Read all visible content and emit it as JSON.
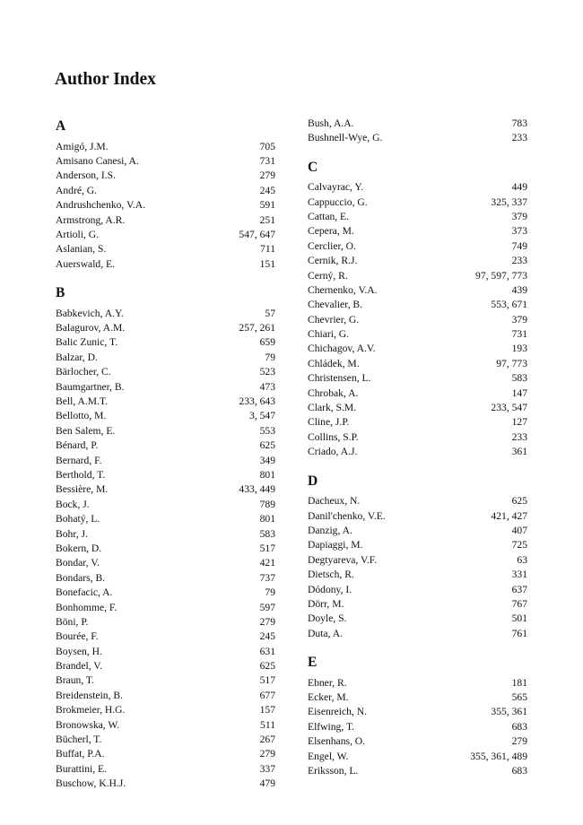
{
  "title": "Author Index",
  "columns": [
    [
      {
        "letter": "A",
        "entries": [
          [
            "Amigó, J.M.",
            "705"
          ],
          [
            "Amisano Canesi, A.",
            "731"
          ],
          [
            "Anderson, I.S.",
            "279"
          ],
          [
            "André, G.",
            "245"
          ],
          [
            "Andrushchenko, V.A.",
            "591"
          ],
          [
            "Armstrong, A.R.",
            "251"
          ],
          [
            "Artioli, G.",
            "547, 647"
          ],
          [
            "Aslanian, S.",
            "711"
          ],
          [
            "Auerswald, E.",
            "151"
          ]
        ]
      },
      {
        "letter": "B",
        "entries": [
          [
            "Babkevich, A.Y.",
            "57"
          ],
          [
            "Balagurov, A.M.",
            "257, 261"
          ],
          [
            "Balic Zunic, T.",
            "659"
          ],
          [
            "Balzar, D.",
            "79"
          ],
          [
            "Bärlocher, C.",
            "523"
          ],
          [
            "Baumgartner, B.",
            "473"
          ],
          [
            "Bell, A.M.T.",
            "233, 643"
          ],
          [
            "Bellotto, M.",
            "3, 547"
          ],
          [
            "Ben Salem, E.",
            "553"
          ],
          [
            "Bénard, P.",
            "625"
          ],
          [
            "Bernard, F.",
            "349"
          ],
          [
            "Berthold, T.",
            "801"
          ],
          [
            "Bessière, M.",
            "433, 449"
          ],
          [
            "Bock, J.",
            "789"
          ],
          [
            "Bohatý, L.",
            "801"
          ],
          [
            "Bohr, J.",
            "583"
          ],
          [
            "Bokern, D.",
            "517"
          ],
          [
            "Bondar, V.",
            "421"
          ],
          [
            "Bondars, B.",
            "737"
          ],
          [
            "Bonefacic, A.",
            "79"
          ],
          [
            "Bonhomme, F.",
            "597"
          ],
          [
            "Böni, P.",
            "279"
          ],
          [
            "Bourée, F.",
            "245"
          ],
          [
            "Boysen, H.",
            "631"
          ],
          [
            "Brandel, V.",
            "625"
          ],
          [
            "Braun, T.",
            "517"
          ],
          [
            "Breidenstein, B.",
            "677"
          ],
          [
            "Brokmeier, H.G.",
            "157"
          ],
          [
            "Bronowska, W.",
            "511"
          ],
          [
            "Bücherl, T.",
            "267"
          ],
          [
            "Buffat, P.A.",
            "279"
          ],
          [
            "Burattini, E.",
            "337"
          ],
          [
            "Buschow, K.H.J.",
            "479"
          ]
        ]
      }
    ],
    [
      {
        "letter": "",
        "entries": [
          [
            "Bush, A.A.",
            "783"
          ],
          [
            "Bushnell-Wye, G.",
            "233"
          ]
        ]
      },
      {
        "letter": "C",
        "entries": [
          [
            "Calvayrac, Y.",
            "449"
          ],
          [
            "Cappuccio, G.",
            "325, 337"
          ],
          [
            "Cattan, E.",
            "379"
          ],
          [
            "Cepera, M.",
            "373"
          ],
          [
            "Cerclier, O.",
            "749"
          ],
          [
            "Cernik, R.J.",
            "233"
          ],
          [
            "Cerný, R.",
            "97, 597, 773"
          ],
          [
            "Chernenko, V.A.",
            "439"
          ],
          [
            "Chevalier, B.",
            "553, 671"
          ],
          [
            "Chevrier, G.",
            "379"
          ],
          [
            "Chiari, G.",
            "731"
          ],
          [
            "Chichagov, A.V.",
            "193"
          ],
          [
            "Chládek, M.",
            "97, 773"
          ],
          [
            "Christensen, L.",
            "583"
          ],
          [
            "Chrobak, A.",
            "147"
          ],
          [
            "Clark, S.M.",
            "233, 547"
          ],
          [
            "Cline, J.P.",
            "127"
          ],
          [
            "Collins, S.P.",
            "233"
          ],
          [
            "Criado, A.J.",
            "361"
          ]
        ]
      },
      {
        "letter": "D",
        "entries": [
          [
            "Dacheux, N.",
            "625"
          ],
          [
            "Danil'chenko, V.E.",
            "421, 427"
          ],
          [
            "Danzig, A.",
            "407"
          ],
          [
            "Dapiaggi, M.",
            "725"
          ],
          [
            "Degtyareva, V.F.",
            "63"
          ],
          [
            "Dietsch, R.",
            "331"
          ],
          [
            "Dódony, I.",
            "637"
          ],
          [
            "Dörr, M.",
            "767"
          ],
          [
            "Doyle, S.",
            "501"
          ],
          [
            "Duta, A.",
            "761"
          ]
        ]
      },
      {
        "letter": "E",
        "entries": [
          [
            "Ebner, R.",
            "181"
          ],
          [
            "Ecker, M.",
            "565"
          ],
          [
            "Eisenreich, N.",
            "355, 361"
          ],
          [
            "Elfwing, T.",
            "683"
          ],
          [
            "Elsenhans, O.",
            "279"
          ],
          [
            "Engel, W.",
            "355, 361, 489"
          ],
          [
            "Eriksson, L.",
            "683"
          ]
        ]
      }
    ]
  ]
}
